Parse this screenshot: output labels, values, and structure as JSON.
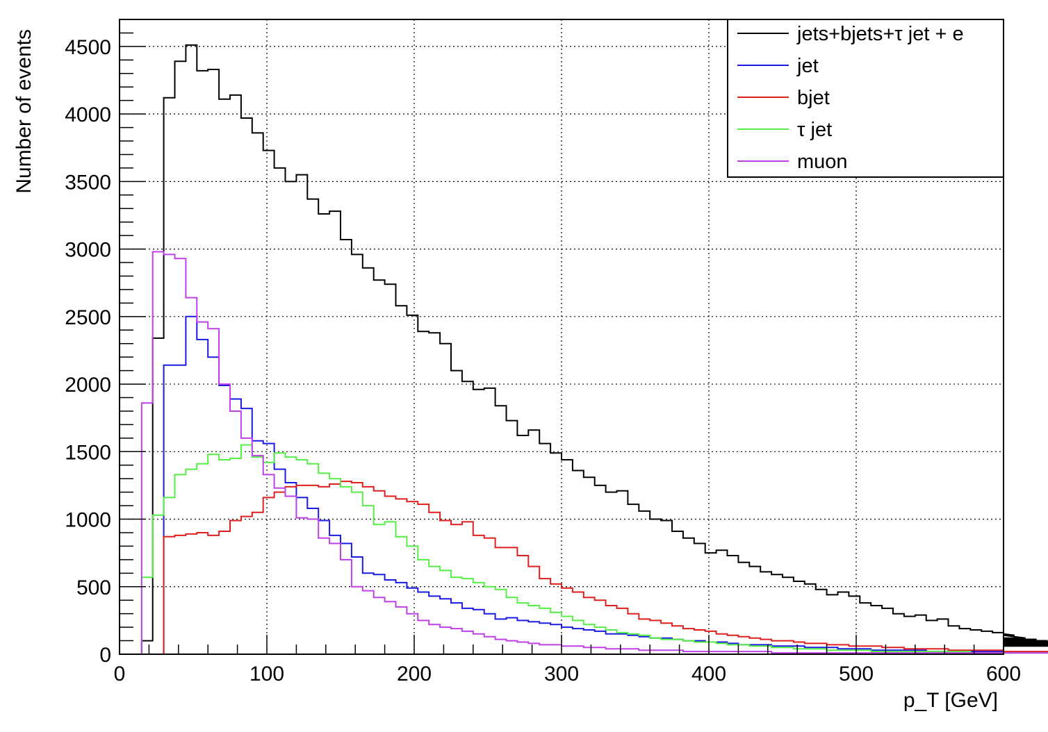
{
  "chart_data": {
    "type": "line",
    "step": true,
    "title": "",
    "xlabel": "p_T [GeV]",
    "ylabel": "Number of events",
    "xlim": [
      0,
      600
    ],
    "ylim": [
      0,
      4700
    ],
    "xticks": [
      0,
      100,
      200,
      300,
      400,
      500,
      600
    ],
    "yticks": [
      0,
      500,
      1000,
      1500,
      2000,
      2500,
      3000,
      3500,
      4000,
      4500
    ],
    "grid": true,
    "legend_position": "top-right",
    "bin_width": 7.5,
    "x_start": 0,
    "series": [
      {
        "name": "jets+bjets+τ jet + e",
        "color": "#000000",
        "values": [
          0,
          0,
          100,
          2340,
          4120,
          4390,
          4510,
          4320,
          4330,
          4110,
          4140,
          3970,
          3860,
          3730,
          3600,
          3500,
          3550,
          3370,
          3260,
          3280,
          3070,
          2960,
          2860,
          2770,
          2740,
          2580,
          2510,
          2390,
          2380,
          2300,
          2100,
          2020,
          1960,
          1970,
          1840,
          1730,
          1620,
          1660,
          1560,
          1490,
          1440,
          1360,
          1310,
          1250,
          1200,
          1210,
          1110,
          1060,
          1000,
          990,
          910,
          860,
          820,
          750,
          770,
          730,
          680,
          650,
          610,
          590,
          570,
          540,
          520,
          480,
          440,
          460,
          430,
          380,
          360,
          340,
          300,
          280,
          290,
          250,
          260,
          210,
          190,
          180,
          170,
          160,
          150,
          140,
          120,
          110,
          100,
          90,
          80,
          70,
          70,
          60
        ]
      },
      {
        "name": "jet",
        "color": "#1a1ae6",
        "values": [
          0,
          0,
          0,
          0,
          2140,
          2140,
          2500,
          2330,
          2200,
          1990,
          1890,
          1820,
          1580,
          1560,
          1370,
          1270,
          1160,
          1080,
          990,
          880,
          820,
          720,
          600,
          590,
          550,
          530,
          490,
          460,
          430,
          410,
          380,
          340,
          330,
          300,
          260,
          270,
          250,
          240,
          230,
          220,
          200,
          190,
          180,
          170,
          150,
          150,
          140,
          130,
          120,
          120,
          110,
          100,
          100,
          90,
          90,
          80,
          70,
          70,
          70,
          60,
          60,
          60,
          50,
          50,
          50,
          40,
          40,
          40,
          30,
          30,
          30,
          30,
          30,
          20,
          20,
          20,
          20,
          20,
          20,
          20,
          10,
          10,
          10,
          10,
          10,
          10,
          10,
          10,
          10,
          10
        ]
      },
      {
        "name": "bjet",
        "color": "#e01e1e",
        "values": [
          0,
          0,
          0,
          0,
          870,
          880,
          890,
          900,
          880,
          910,
          990,
          1020,
          1050,
          1160,
          1200,
          1240,
          1250,
          1250,
          1240,
          1260,
          1280,
          1270,
          1240,
          1210,
          1170,
          1150,
          1130,
          1110,
          1050,
          990,
          960,
          980,
          880,
          860,
          790,
          790,
          730,
          650,
          560,
          520,
          490,
          460,
          420,
          400,
          360,
          340,
          300,
          260,
          250,
          230,
          210,
          190,
          180,
          170,
          150,
          140,
          130,
          120,
          110,
          100,
          100,
          90,
          80,
          80,
          70,
          70,
          60,
          60,
          60,
          50,
          50,
          40,
          40,
          40,
          40,
          30,
          30,
          30,
          30,
          30,
          20,
          20,
          20,
          20,
          20,
          20,
          20,
          20,
          20,
          20
        ]
      },
      {
        "name": "τ jet",
        "color": "#55ee44",
        "values": [
          0,
          0,
          570,
          1030,
          1160,
          1330,
          1370,
          1410,
          1480,
          1440,
          1450,
          1550,
          1460,
          1420,
          1490,
          1460,
          1440,
          1410,
          1340,
          1300,
          1240,
          1200,
          1100,
          960,
          980,
          870,
          800,
          700,
          650,
          620,
          570,
          560,
          530,
          500,
          480,
          420,
          380,
          360,
          340,
          310,
          280,
          250,
          220,
          200,
          180,
          160,
          150,
          140,
          120,
          110,
          110,
          100,
          90,
          90,
          80,
          70,
          70,
          60,
          60,
          50,
          50,
          40,
          40,
          40,
          30,
          30,
          30,
          30,
          20,
          20,
          20,
          20,
          20,
          20,
          20,
          20,
          20,
          10,
          10,
          10,
          10,
          10,
          10,
          10,
          10,
          10,
          10,
          10,
          10,
          10
        ]
      },
      {
        "name": "muon",
        "color": "#bf40e6",
        "values": [
          0,
          0,
          1860,
          2980,
          2960,
          2930,
          2640,
          2460,
          2410,
          2000,
          1800,
          1600,
          1470,
          1330,
          1230,
          1170,
          1010,
          1000,
          860,
          820,
          700,
          500,
          470,
          420,
          390,
          350,
          300,
          250,
          220,
          200,
          190,
          170,
          150,
          130,
          110,
          100,
          90,
          80,
          70,
          70,
          60,
          60,
          50,
          50,
          40,
          40,
          40,
          30,
          30,
          30,
          30,
          20,
          20,
          20,
          20,
          20,
          20,
          20,
          20,
          10,
          10,
          10,
          10,
          10,
          10,
          10,
          10,
          10,
          10,
          10,
          10,
          10,
          10,
          10,
          10,
          10,
          10,
          10,
          10,
          10,
          10,
          10,
          10,
          10,
          10,
          10,
          10,
          10,
          10,
          10
        ]
      }
    ]
  }
}
